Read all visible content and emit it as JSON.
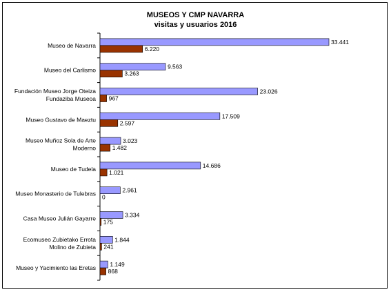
{
  "chart_data": {
    "type": "bar",
    "orientation": "horizontal",
    "title": "MUSEOS Y CMP NAVARRA",
    "subtitle": "visitas y usuarios 2016",
    "categories": [
      [
        "Museo de Navarra"
      ],
      [
        "Museo del Carlismo"
      ],
      [
        "Fundación Museo Jorge Oteiza",
        "Fundaziba Museoa"
      ],
      [
        "Museo Gustavo de Maeztu"
      ],
      [
        "Museo Muñoz Sola de Arte",
        "Moderno"
      ],
      [
        "Museo de Tudela"
      ],
      [
        "Museo Monasterio de Tulebras"
      ],
      [
        "Casa Museo Julián Gayarre"
      ],
      [
        "Ecomuseo Zubietako Errota",
        "Molino de Zubieta"
      ],
      [
        "Museo y Yacimiento las Eretas"
      ]
    ],
    "series": [
      {
        "color": "#9999ff",
        "values": [
          33441,
          9563,
          23026,
          17509,
          3023,
          14686,
          2961,
          3334,
          1844,
          1149
        ],
        "labels": [
          "33.441",
          "9.563",
          "23.026",
          "17.509",
          "3.023",
          "14.686",
          "2.961",
          "3.334",
          "1.844",
          "1.149"
        ]
      },
      {
        "color": "#993300",
        "values": [
          6220,
          3263,
          967,
          2597,
          1482,
          1021,
          0,
          175,
          241,
          868
        ],
        "labels": [
          "6.220",
          "3.263",
          "967",
          "2.597",
          "1.482",
          "1.021",
          "0",
          "175",
          "241",
          "868"
        ]
      }
    ],
    "xlim": [
      0,
      33441
    ],
    "grid": false,
    "legend": "none"
  }
}
